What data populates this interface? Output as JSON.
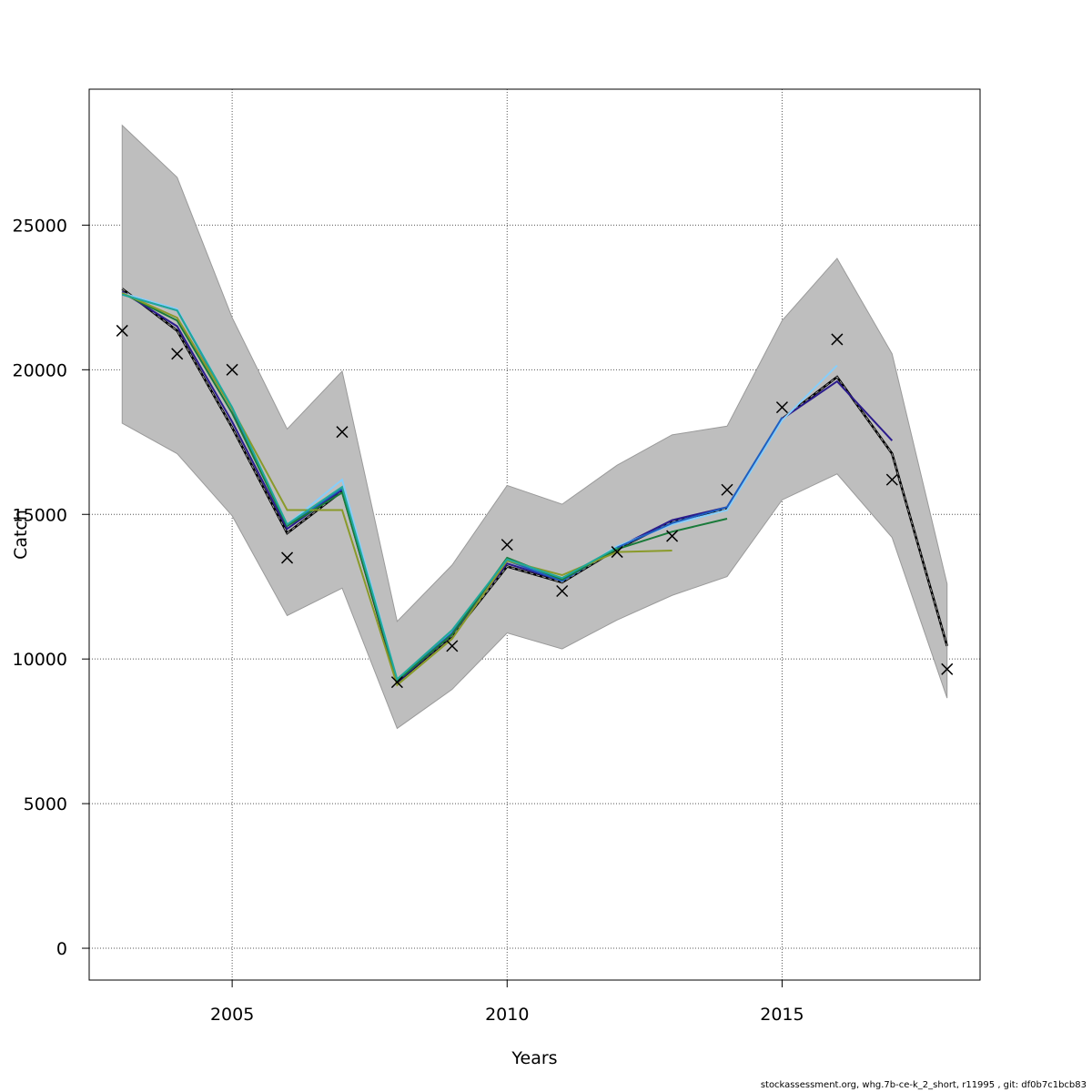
{
  "chart_data": {
    "type": "line",
    "xlabel": "Years",
    "ylabel": "Catch",
    "xlim": [
      2002.4,
      2018.6
    ],
    "ylim": [
      -1100,
      29700
    ],
    "x_ticks": [
      2005,
      2010,
      2015
    ],
    "y_ticks": [
      0,
      5000,
      10000,
      15000,
      20000,
      25000
    ],
    "grid": true,
    "confidence_band": {
      "color": "#bebebe",
      "x": [
        2003,
        2004,
        2005,
        2006,
        2007,
        2008,
        2009,
        2010,
        2011,
        2012,
        2013,
        2014,
        2015,
        2016,
        2017,
        2018
      ],
      "upper": [
        28450,
        26650,
        21800,
        17950,
        19950,
        11300,
        13250,
        16000,
        15350,
        16700,
        17750,
        18050,
        21700,
        23850,
        20550,
        12600
      ],
      "lower": [
        18150,
        17100,
        14950,
        11500,
        12450,
        7600,
        8950,
        10900,
        10350,
        11350,
        12200,
        12850,
        15500,
        16400,
        14200,
        8650
      ]
    },
    "observed": {
      "marker": "x",
      "x": [
        2003,
        2004,
        2005,
        2006,
        2007,
        2008,
        2009,
        2010,
        2011,
        2012,
        2013,
        2014,
        2015,
        2016,
        2017,
        2018
      ],
      "y": [
        21350,
        20550,
        20000,
        13500,
        17850,
        9200,
        10450,
        13950,
        12350,
        13700,
        14250,
        15850,
        18700,
        21050,
        16200,
        9650
      ]
    },
    "series": [
      {
        "color": "#000000",
        "dashed": true,
        "x": [
          2003,
          2004,
          2005,
          2006,
          2007,
          2008,
          2009,
          2010,
          2011,
          2012,
          2013,
          2014,
          2015,
          2016,
          2017,
          2018
        ],
        "values": [
          22800,
          21350,
          18000,
          14350,
          15800,
          9200,
          10800,
          13200,
          12650,
          13800,
          14750,
          15200,
          18300,
          19750,
          17100,
          10450
        ]
      },
      {
        "color": "#2b1b8c",
        "x": [
          2003,
          2004,
          2005,
          2006,
          2007,
          2008,
          2009,
          2010,
          2011,
          2012,
          2013,
          2014,
          2015,
          2016,
          2017
        ],
        "values": [
          22700,
          21500,
          18200,
          14500,
          15850,
          9200,
          10850,
          13300,
          12700,
          13850,
          14800,
          15250,
          18300,
          19600,
          17550
        ]
      },
      {
        "color": "#87cefa",
        "x": [
          2003,
          2004,
          2005,
          2006,
          2007,
          2008,
          2009,
          2010,
          2011,
          2012,
          2013,
          2014,
          2015,
          2016
        ],
        "values": [
          22650,
          22100,
          18700,
          14650,
          16200,
          9300,
          10950,
          13450,
          12700,
          13900,
          14650,
          15150,
          18250,
          20150
        ]
      },
      {
        "color": "#1f5fbf",
        "x": [
          2003,
          2004,
          2005,
          2006,
          2007,
          2008,
          2009,
          2010,
          2011,
          2012,
          2013,
          2014,
          2015
        ],
        "values": [
          22600,
          22050,
          18650,
          14600,
          15900,
          9250,
          10900,
          13400,
          12700,
          13850,
          14700,
          15250,
          18350
        ]
      },
      {
        "color": "#1a7a3a",
        "x": [
          2003,
          2004,
          2005,
          2006,
          2007,
          2008,
          2009,
          2010,
          2011,
          2012,
          2013,
          2014
        ],
        "values": [
          22650,
          21700,
          18500,
          14600,
          15750,
          9250,
          10850,
          13500,
          12750,
          13800,
          14400,
          14850
        ]
      },
      {
        "color": "#8a9a2a",
        "x": [
          2003,
          2004,
          2005,
          2006,
          2007,
          2008,
          2009,
          2010,
          2011,
          2012,
          2013
        ],
        "values": [
          22650,
          21800,
          18650,
          15150,
          15150,
          9100,
          10700,
          13400,
          12900,
          13700,
          13750
        ]
      },
      {
        "color": "#20a89a",
        "x": [
          2003,
          2004,
          2005,
          2006,
          2007,
          2008,
          2009,
          2010,
          2011,
          2012
        ],
        "values": [
          22600,
          22050,
          18700,
          14650,
          15950,
          9300,
          11000,
          13450,
          12800,
          13850
        ]
      }
    ]
  },
  "footer": "stockassessment.org, whg.7b-ce-k_2_short, r11995 , git: df0b7c1bcb83"
}
